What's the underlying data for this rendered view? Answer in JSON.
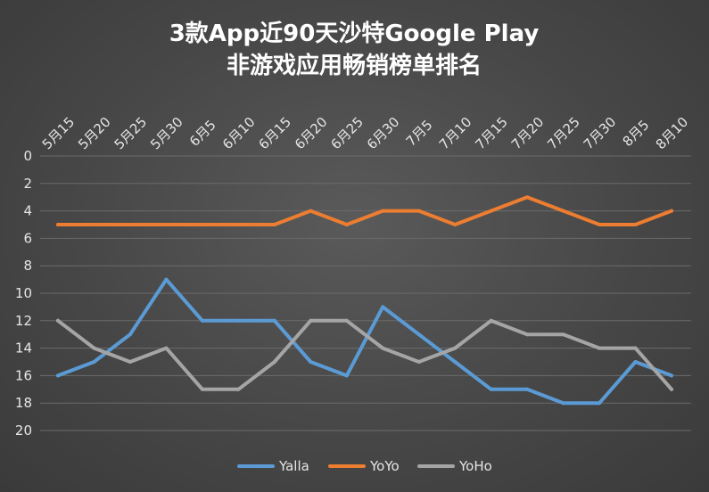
{
  "chart_data": {
    "type": "line",
    "title_line1": "3款App近90天沙特Google Play",
    "title_line2": "非游戏应用畅销榜单排名",
    "categories": [
      "5月15",
      "5月20",
      "5月25",
      "5月30",
      "6月5",
      "6月10",
      "6月15",
      "6月20",
      "6月25",
      "6月30",
      "7月5",
      "7月10",
      "7月15",
      "7月20",
      "7月25",
      "7月30",
      "8月5",
      "8月10"
    ],
    "y_ticks": [
      "0",
      "2",
      "4",
      "6",
      "8",
      "10",
      "12",
      "14",
      "16",
      "18",
      "20"
    ],
    "ylim": [
      0,
      20
    ],
    "y_reversed": true,
    "grid": true,
    "legend_position": "bottom",
    "series": [
      {
        "name": "Yalla",
        "color": "#5b9bd5",
        "values": [
          16,
          15,
          13,
          9,
          12,
          12,
          12,
          15,
          16,
          11,
          13,
          15,
          17,
          17,
          18,
          18,
          15,
          16
        ]
      },
      {
        "name": "YoYo",
        "color": "#ed7d31",
        "values": [
          5,
          5,
          5,
          5,
          5,
          5,
          5,
          4,
          5,
          4,
          4,
          5,
          4,
          3,
          4,
          5,
          5,
          4
        ]
      },
      {
        "name": "YoHo",
        "color": "#a5a5a5",
        "values": [
          12,
          14,
          15,
          14,
          17,
          17,
          15,
          12,
          12,
          14,
          15,
          14,
          12,
          13,
          13,
          14,
          14,
          17
        ]
      }
    ]
  }
}
